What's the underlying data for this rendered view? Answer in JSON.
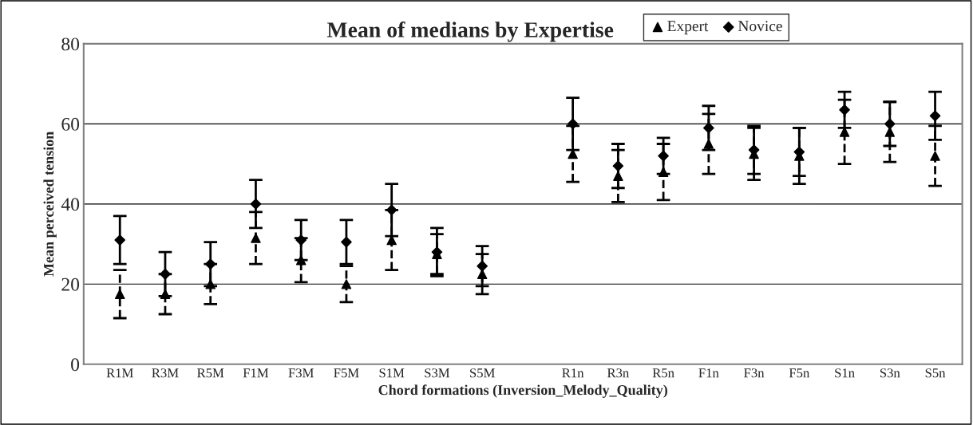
{
  "chart_data": {
    "type": "scatter",
    "title": "Mean of medians by Expertise",
    "xlabel": "Chord formations (Inversion_Melody_Quality)",
    "ylabel": "Mean perceived tension",
    "categories": [
      "R1M",
      "R3M",
      "R5M",
      "F1M",
      "F3M",
      "F5M",
      "S1M",
      "S3M",
      "S5M",
      null,
      "R1n",
      "R3n",
      "R5n",
      "F1n",
      "F3n",
      "F5n",
      "S1n",
      "S3n",
      "S5n"
    ],
    "series": [
      {
        "name": "Expert",
        "color": "#000000",
        "marker": "triangle",
        "line_style": "dashed",
        "values": [
          17.5,
          17.5,
          20,
          31.5,
          26,
          20,
          31,
          27.5,
          22.5,
          null,
          52.5,
          47,
          48,
          55,
          52.5,
          52,
          58,
          58,
          52
        ],
        "errors": [
          6,
          5,
          5,
          6.5,
          5.5,
          4.5,
          7.5,
          5,
          5,
          null,
          7,
          6.5,
          7,
          7.5,
          6.5,
          7,
          8,
          7.5,
          7.5
        ]
      },
      {
        "name": "Novice",
        "color": "#000000",
        "marker": "diamond",
        "line_style": "solid",
        "values": [
          31,
          22.5,
          25,
          40,
          31,
          30.5,
          38.5,
          28,
          24.5,
          null,
          60,
          49.5,
          52,
          59,
          53.5,
          53,
          63.5,
          60,
          62
        ],
        "errors": [
          6,
          5.5,
          5.5,
          6,
          5,
          5.5,
          6.5,
          6,
          5,
          null,
          6.5,
          5.5,
          4.5,
          5.5,
          6,
          6,
          4.5,
          5.5,
          6
        ]
      }
    ],
    "ylim": [
      0,
      80
    ],
    "yticks": [
      0,
      20,
      40,
      60,
      80
    ],
    "grid": "y",
    "legend": "top"
  }
}
